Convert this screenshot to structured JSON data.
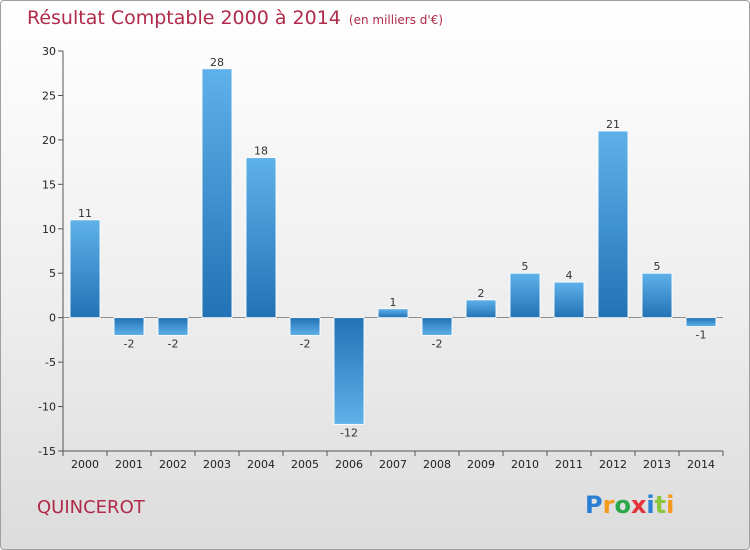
{
  "title": "Résultat Comptable 2000 à 2014",
  "subtitle": "(en milliers d'€)",
  "commune": "QUINCEROT",
  "logo": {
    "text": "Proxiti",
    "letters": [
      "P",
      "r",
      "o",
      "x",
      "i",
      "t",
      "i"
    ],
    "colors": [
      "#2a7fd4",
      "#f29a1d",
      "#2aa84a",
      "#e2323a",
      "#2a7fd4",
      "#8cc63f",
      "#f29a1d"
    ]
  },
  "colors": {
    "title": "#b02a4a",
    "bar_top": "#5fb1ea",
    "bar_bottom": "#2272b5"
  },
  "chart_data": {
    "type": "bar",
    "title": "Résultat Comptable 2000 à 2014",
    "subtitle": "(en milliers d'€)",
    "categories": [
      "2000",
      "2001",
      "2002",
      "2003",
      "2004",
      "2005",
      "2006",
      "2007",
      "2008",
      "2009",
      "2010",
      "2011",
      "2012",
      "2013",
      "2014"
    ],
    "values": [
      11,
      -2,
      -2,
      28,
      18,
      -2,
      -12,
      1,
      -2,
      2,
      5,
      4,
      21,
      5,
      -1
    ],
    "ylim": [
      -15,
      30
    ],
    "yticks": [
      30,
      25,
      20,
      15,
      10,
      5,
      0,
      -5,
      -10,
      -15
    ],
    "xlabel": "",
    "ylabel": "",
    "grid": false,
    "data_labels": true
  }
}
